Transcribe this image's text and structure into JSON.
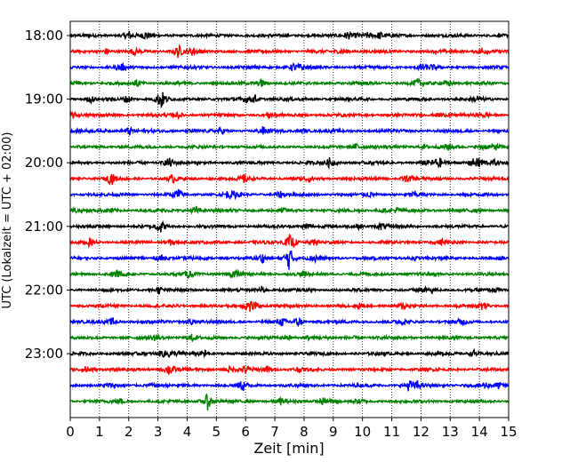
{
  "chart_data": {
    "type": "line",
    "title": "",
    "xlabel": "Zeit  [min]",
    "ylabel": "UTC (Lokalzeit = UTC + 02:00)",
    "xlim": [
      0,
      15
    ],
    "x_ticks": [
      0,
      1,
      2,
      3,
      4,
      5,
      6,
      7,
      8,
      9,
      10,
      11,
      12,
      13,
      14,
      15
    ],
    "x_tick_labels": [
      "0",
      "1",
      "2",
      "3",
      "4",
      "5",
      "6",
      "7",
      "8",
      "9",
      "10",
      "11",
      "12",
      "13",
      "14",
      "15"
    ],
    "y_tick_labels": [
      "18:00",
      "19:00",
      "20:00",
      "21:00",
      "22:00",
      "23:00"
    ],
    "row_interval_minutes": 15,
    "rows_start": "18:00",
    "row_count": 24,
    "color_cycle": [
      "#000000",
      "#ff0000",
      "#0000ff",
      "#008000"
    ],
    "grid": {
      "vertical": true,
      "style": "dotted"
    },
    "notable_events": [
      {
        "row": 4,
        "x_min": 3.1,
        "amplitude": 2.4
      },
      {
        "row": 0,
        "x_min": 2.0,
        "amplitude": 1.1
      },
      {
        "row": 1,
        "x_min": 3.7,
        "amplitude": 1.5
      },
      {
        "row": 8,
        "x_min": 8.9,
        "amplitude": 1.3
      },
      {
        "row": 8,
        "x_min": 12.6,
        "amplitude": 1.3
      },
      {
        "row": 8,
        "x_min": 14.0,
        "amplitude": 1.4
      },
      {
        "row": 9,
        "x_min": 1.4,
        "amplitude": 1.4
      },
      {
        "row": 10,
        "x_min": 3.7,
        "amplitude": 1.4
      },
      {
        "row": 11,
        "x_min": 4.3,
        "amplitude": 1.0
      },
      {
        "row": 13,
        "x_min": 7.5,
        "amplitude": 1.5
      },
      {
        "row": 14,
        "x_min": 7.5,
        "amplitude": 2.6
      },
      {
        "row": 17,
        "x_min": 14.1,
        "amplitude": 1.2
      },
      {
        "row": 18,
        "x_min": 7.8,
        "amplitude": 1.1
      },
      {
        "row": 21,
        "x_min": 0.6,
        "amplitude": 1.2
      },
      {
        "row": 21,
        "x_min": 6.0,
        "amplitude": 1.0
      },
      {
        "row": 22,
        "x_min": 5.9,
        "amplitude": 1.3
      },
      {
        "row": 22,
        "x_min": 11.6,
        "amplitude": 1.3
      },
      {
        "row": 23,
        "x_min": 4.7,
        "amplitude": 1.8
      }
    ]
  }
}
